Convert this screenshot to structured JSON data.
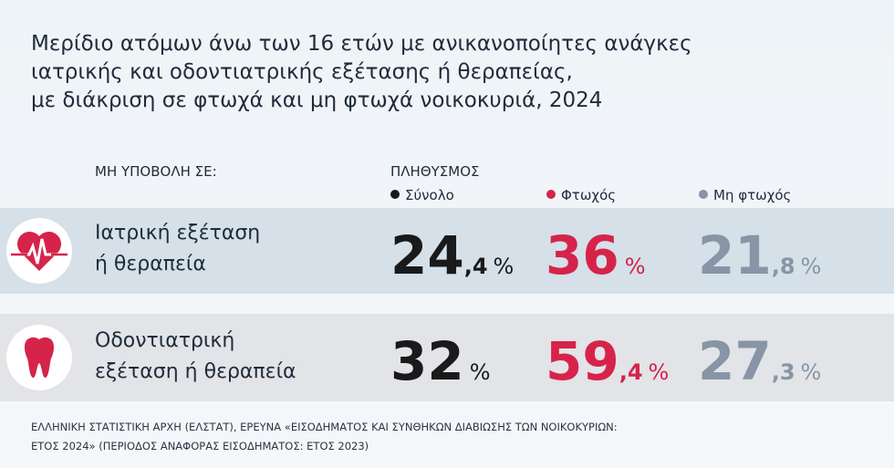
{
  "title": {
    "lines": [
      "Μερίδιο ατόμων άνω των 16 ετών με ανικανοποίητες ανάγκες",
      "ιατρικής και οδοντιατρικής εξέτασης ή θεραπείας,",
      "με διάκριση σε φτωχά και μη φτωχά νοικοκυριά, 2024"
    ]
  },
  "table": {
    "row_header": "ΜΗ ΥΠΟΒΟΛΗ ΣΕ:",
    "group_header": "ΠΛΗΘΥΣΜΟΣ",
    "columns": [
      "Σύνολο",
      "Φτωχός",
      "Μη φτωχός"
    ],
    "unit": "%",
    "rows": [
      {
        "label": [
          "Ιατρική εξέταση",
          "ή θεραπεία"
        ],
        "cells": [
          {
            "integer": "24",
            "decimal": ",4"
          },
          {
            "integer": "36"
          },
          {
            "integer": "21",
            "decimal": ",8"
          }
        ]
      },
      {
        "label": [
          "Οδοντιατρική",
          "εξέταση ή θεραπεία"
        ],
        "cells": [
          {
            "integer": "32"
          },
          {
            "integer": "59",
            "decimal": ",4"
          },
          {
            "integer": "27",
            "decimal": ",3"
          }
        ]
      }
    ]
  },
  "source": {
    "lines": [
      "ΕΛΛΗΝΙΚΗ ΣΤΑΤΙΣΤΙΚΗ ΑΡΧΗ (ΕΛΣΤΑΤ), ΕΡΕΥΝΑ «ΕΙΣΟΔΗΜΑΤΟΣ ΚΑΙ ΣΥΝΘΗΚΩΝ ΔΙΑΒΙΩΣΗΣ ΤΩΝ ΝΟΙΚΟΚΥΡΙΩΝ:",
      "ΕΤΟΣ 2024» (ΠΕΡΙΟΔΟΣ ΑΝΑΦΟΡΑΣ ΕΙΣΟΔΗΜΑΤΟΣ: ΕΤΟΣ 2023)"
    ]
  }
}
